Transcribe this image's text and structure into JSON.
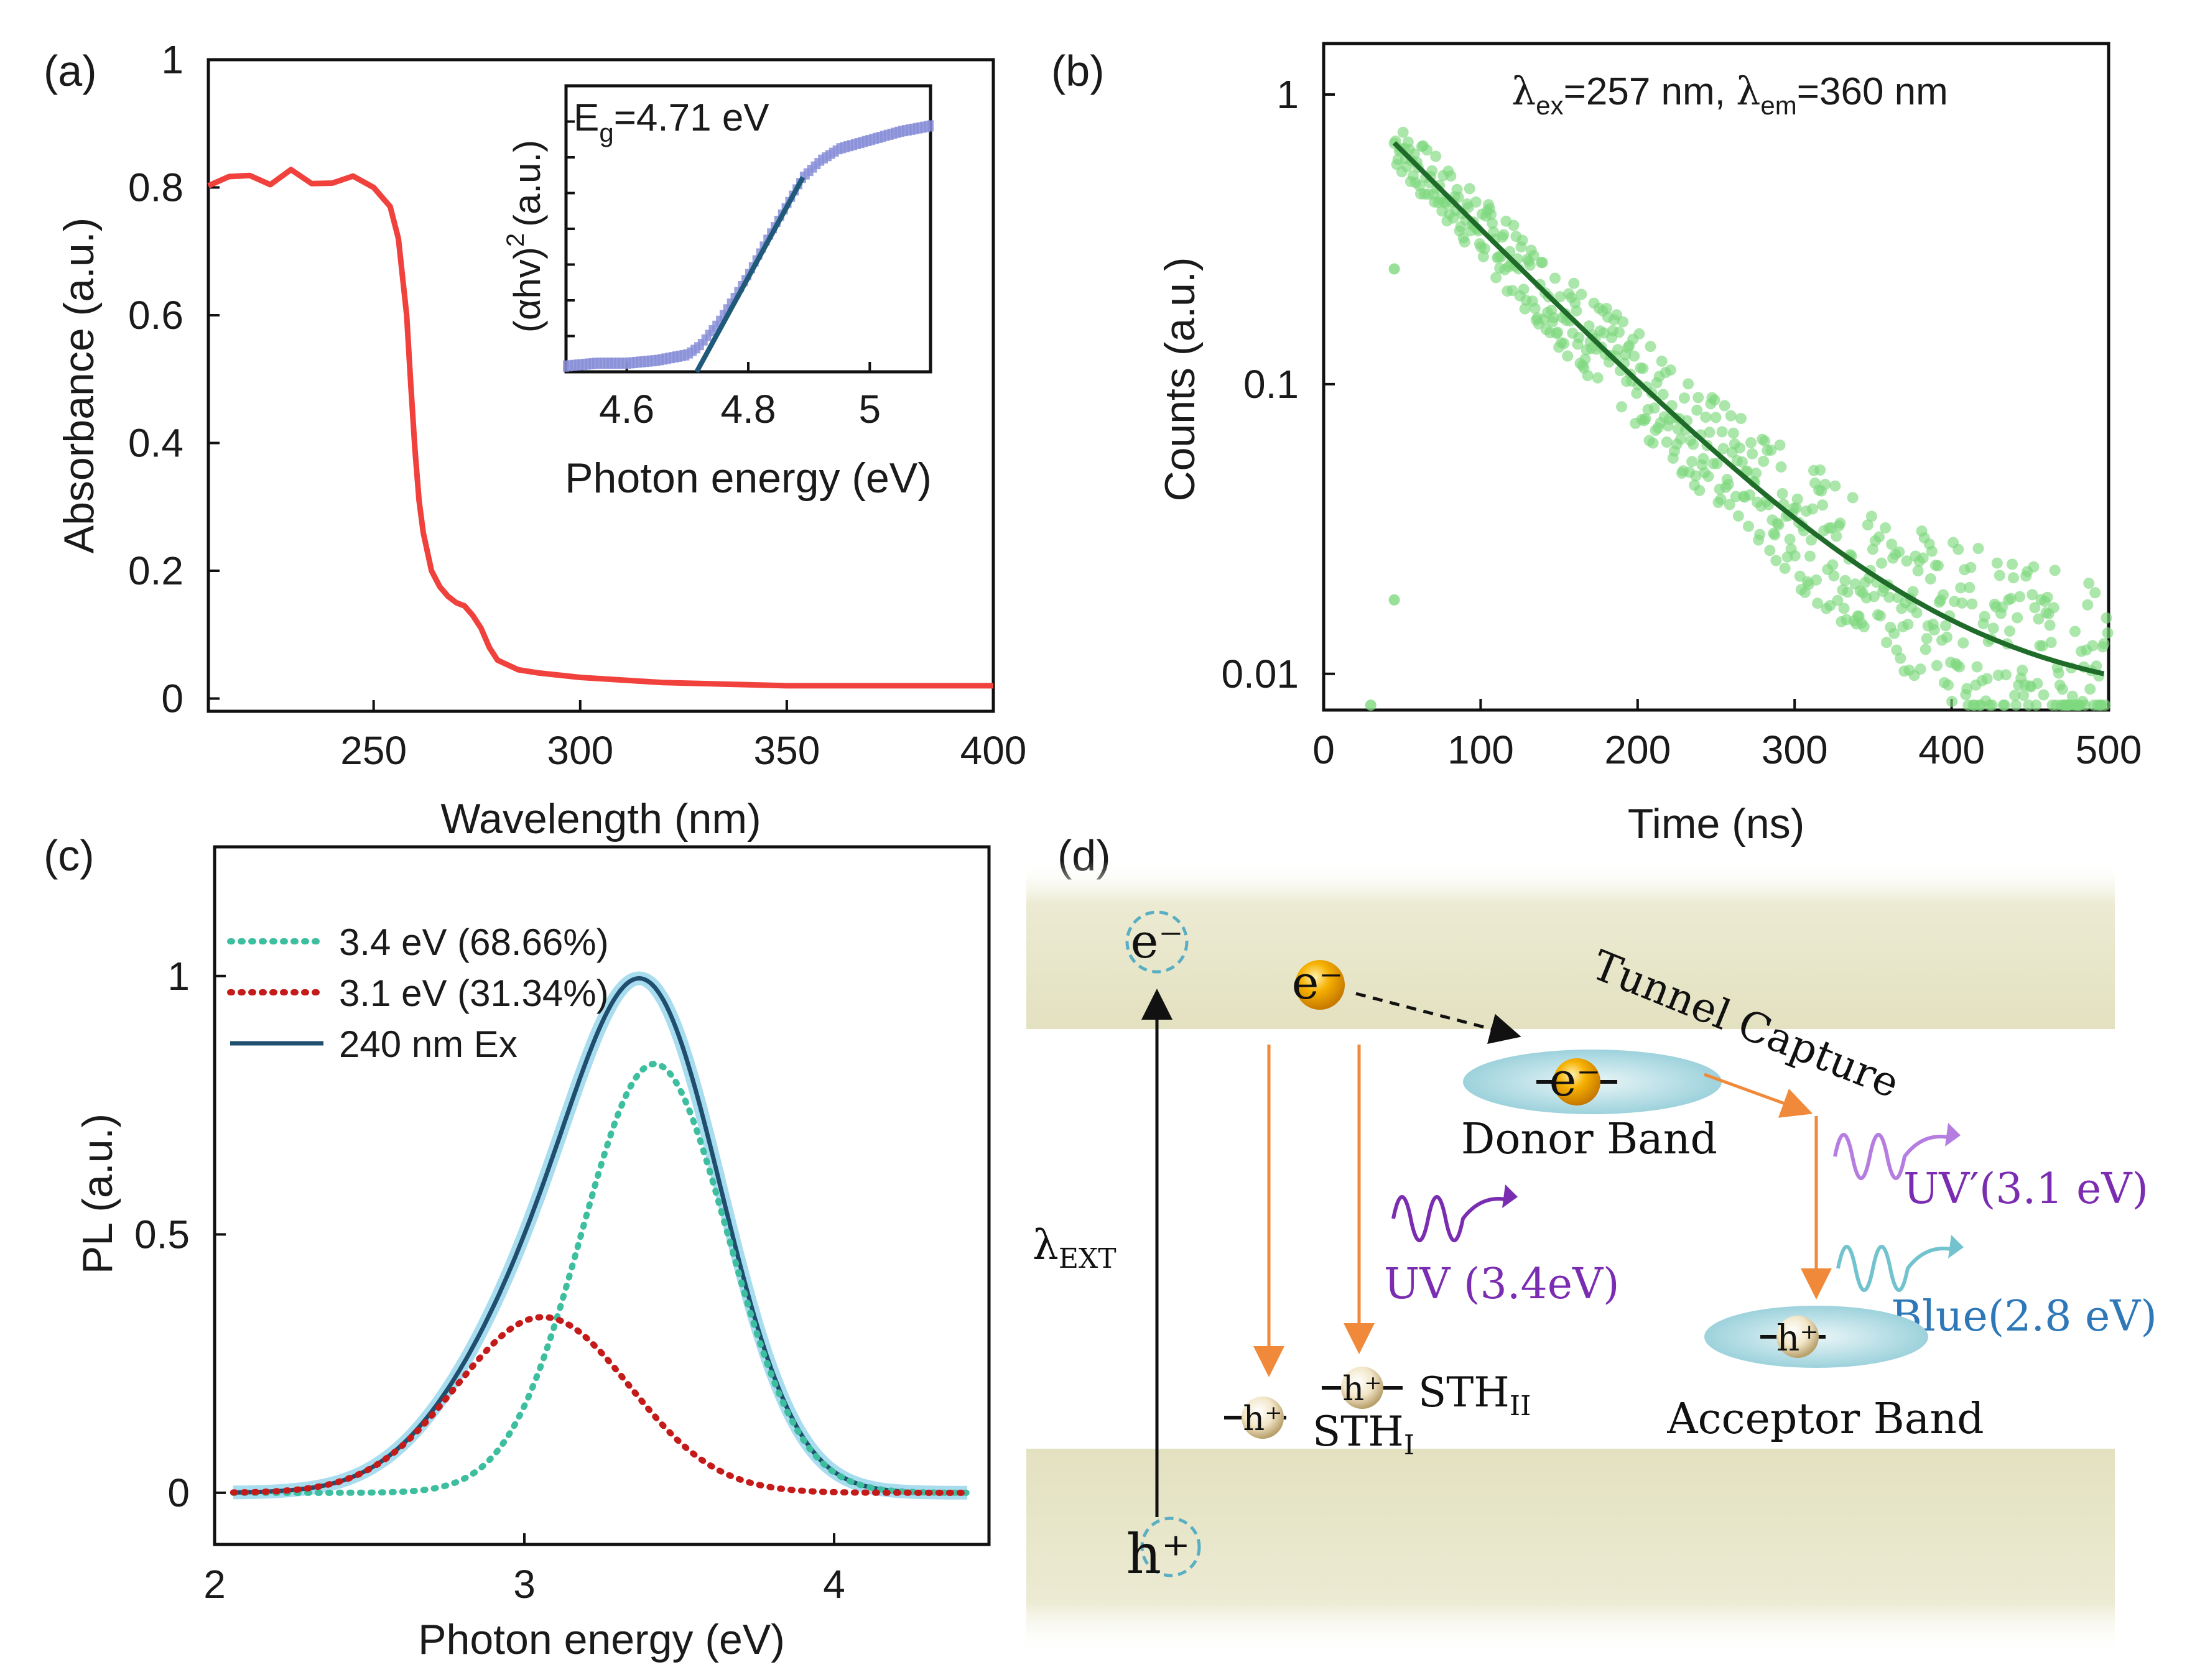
{
  "panels": {
    "a": {
      "label": "(a)"
    },
    "b": {
      "label": "(b)"
    },
    "c": {
      "label": "(c)"
    },
    "d": {
      "label": "(d)"
    }
  },
  "chart_data": [
    {
      "id": "a",
      "type": "line",
      "xlabel": "Wavelength (nm)",
      "ylabel": "Absorbance (a.u.)",
      "xlim": [
        210,
        400
      ],
      "ylim": [
        0,
        1
      ],
      "xticks": [
        "250",
        "300",
        "350",
        "400"
      ],
      "xtick_values": [
        250,
        300,
        350,
        400
      ],
      "yticks": [
        "0",
        "0.2",
        "0.4",
        "0.6",
        "0.8",
        "1"
      ],
      "ytick_values": [
        0,
        0.2,
        0.4,
        0.6,
        0.8,
        1
      ],
      "color": "#f0413c",
      "series": [
        {
          "name": "Absorbance",
          "x": [
            210,
            215,
            220,
            225,
            230,
            235,
            240,
            245,
            250,
            254,
            256,
            258,
            259,
            260,
            261,
            262,
            264,
            266,
            268,
            270,
            272,
            274,
            276,
            278,
            280,
            285,
            290,
            300,
            320,
            350,
            380,
            400
          ],
          "y": [
            0.81,
            0.81,
            0.82,
            0.81,
            0.82,
            0.81,
            0.81,
            0.81,
            0.8,
            0.77,
            0.72,
            0.6,
            0.49,
            0.39,
            0.31,
            0.26,
            0.2,
            0.175,
            0.16,
            0.15,
            0.145,
            0.13,
            0.11,
            0.08,
            0.06,
            0.045,
            0.04,
            0.033,
            0.025,
            0.02,
            0.02,
            0.02
          ]
        }
      ],
      "inset": {
        "xlabel": "Photon energy (eV)",
        "ylabel": "(αhv)",
        "ylabel_sup": "2",
        "ylabel_unit": "(a.u.)",
        "annotation_main": "E",
        "annotation_sub": "g",
        "annotation_value": "=4.71 eV",
        "xlim": [
          4.5,
          5.1
        ],
        "ylim": [
          0,
          1
        ],
        "xticks": [
          "4.6",
          "4.8",
          "5"
        ],
        "xtick_values": [
          4.6,
          4.8,
          5.0
        ],
        "data_color": "#8a8fd8",
        "fit_color": "#1f5a7a",
        "data": {
          "x": [
            4.5,
            4.55,
            4.6,
            4.65,
            4.7,
            4.72,
            4.75,
            4.78,
            4.8,
            4.83,
            4.86,
            4.89,
            4.92,
            4.95,
            5.0,
            5.05,
            5.1
          ],
          "y": [
            0.02,
            0.03,
            0.03,
            0.04,
            0.06,
            0.09,
            0.17,
            0.27,
            0.34,
            0.46,
            0.57,
            0.68,
            0.74,
            0.78,
            0.81,
            0.84,
            0.86
          ]
        },
        "fit": {
          "x": [
            4.715,
            4.89
          ],
          "y": [
            0.0,
            0.68
          ]
        }
      }
    },
    {
      "id": "b",
      "type": "scatter",
      "xlabel": "Time (ns)",
      "ylabel": "Counts (a.u.)",
      "annotation": "λex=257 nm, λem=360 nm",
      "annot_l1": "λ",
      "annot_s1": "ex",
      "annot_t1": "=257 nm, ",
      "annot_l2": "λ",
      "annot_s2": "em",
      "annot_t2": "=360 nm",
      "xlim": [
        0,
        500
      ],
      "ylim": [
        0.0075,
        1.5
      ],
      "yscale": "log",
      "xticks": [
        "0",
        "100",
        "200",
        "300",
        "400",
        "500"
      ],
      "xtick_values": [
        0,
        100,
        200,
        300,
        400,
        500
      ],
      "yticks": [
        "0.01",
        "0.1",
        "1"
      ],
      "ytick_values": [
        0.01,
        0.1,
        1
      ],
      "point_color": "#7ed87e",
      "fit_color": "#1f6b2a",
      "fit_model": {
        "type": "exponential",
        "A": 0.0078,
        "B": 1.19,
        "tau": 79,
        "t0": 0,
        "t_start": 45,
        "t_end": 500
      }
    },
    {
      "id": "c",
      "type": "line",
      "xlabel": "Photon energy (eV)",
      "ylabel": "PL (a.u.)",
      "xlim": [
        2.0,
        4.5
      ],
      "ylim": [
        -0.1,
        1.25
      ],
      "xticks": [
        "2",
        "3",
        "4"
      ],
      "xtick_values": [
        2,
        3,
        4
      ],
      "yticks": [
        "0",
        "0.5",
        "1"
      ],
      "ytick_values": [
        0,
        0.5,
        1
      ],
      "series": [
        {
          "name": "3.4 eV (68.66%)",
          "style": "dotted",
          "color": "#3dbf9f",
          "model": {
            "type": "gaussian",
            "amp": 0.83,
            "center": 3.42,
            "sigma": 0.235
          }
        },
        {
          "name": "3.1 eV (31.34%)",
          "style": "dotted",
          "color": "#c41a1a",
          "model": {
            "type": "gaussian",
            "amp": 0.34,
            "center": 3.06,
            "sigma": 0.28
          }
        },
        {
          "name": "240 nm Ex",
          "style": "solid",
          "color": "#1f4e6e",
          "model": {
            "type": "sum"
          }
        }
      ],
      "x_range": [
        2.06,
        4.43
      ]
    }
  ],
  "diagram": {
    "e_minus": "e⁻",
    "h_plus": "h⁺",
    "lambda_ext": "λ",
    "lambda_ext_sub": "EXT",
    "electron": "e⁻",
    "tunnel_capture": "Tunnel Capture",
    "donor_electron": "e⁻",
    "donor_band": "Donor Band",
    "uv": "UV (3.4eV)",
    "uv_prime": "UV′(3.1 eV)",
    "blue": "Blue(2.8 eV)",
    "acceptor_band": "Acceptor Band",
    "acceptor_hole": "h⁺",
    "sth1_hole": "h⁺",
    "sth2_hole": "h⁺",
    "sth1": "STH",
    "sth1_sub": "I",
    "sth2": "STH",
    "sth2_sub": "II",
    "colors": {
      "band": "#e9e7c8",
      "arrow": "#f08a3a",
      "uv": "#7a2db0",
      "uvprime": "#b57de0",
      "blue": "#2e78b8",
      "bluewave": "#73c3cf",
      "ellipse": "#a9d8e0",
      "electron": "#f5a500"
    }
  }
}
